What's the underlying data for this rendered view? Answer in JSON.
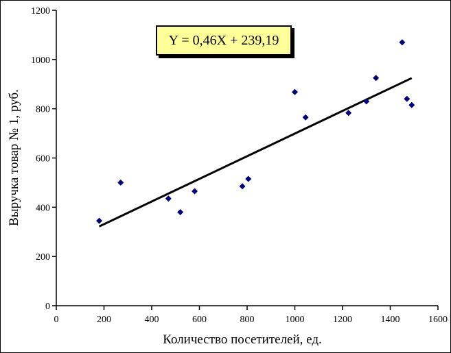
{
  "window": {
    "background": "#ffffff",
    "frame_border_color": "#000000"
  },
  "chart_data": {
    "type": "scatter",
    "title": "",
    "xlabel": "Количество посетителей, ед.",
    "ylabel": "Выручка товар № 1, руб.",
    "xlim": [
      0,
      1600
    ],
    "ylim": [
      0,
      1200
    ],
    "x_ticks": [
      0,
      200,
      400,
      600,
      800,
      1000,
      1200,
      1400,
      1600
    ],
    "y_ticks": [
      0,
      200,
      400,
      600,
      800,
      1000,
      1200
    ],
    "grid": false,
    "legend": false,
    "marker": {
      "shape": "diamond",
      "color": "#000080",
      "size": 9
    },
    "points": [
      [
        180,
        345
      ],
      [
        270,
        500
      ],
      [
        470,
        435
      ],
      [
        520,
        380
      ],
      [
        580,
        465
      ],
      [
        780,
        485
      ],
      [
        805,
        515
      ],
      [
        1000,
        868
      ],
      [
        1045,
        765
      ],
      [
        1225,
        783
      ],
      [
        1300,
        830
      ],
      [
        1340,
        925
      ],
      [
        1450,
        1070
      ],
      [
        1470,
        840
      ],
      [
        1490,
        815
      ]
    ],
    "trendline": {
      "slope": 0.46,
      "intercept": 239.19,
      "x_start": 180,
      "x_end": 1490,
      "color": "#000000",
      "width": 3
    },
    "equation_box": {
      "text": "Y = 0,46X + 239,19",
      "fill": "#ffff99",
      "border_color": "#000000",
      "shadow_color": "#000000"
    },
    "axis_color": "#000000"
  }
}
